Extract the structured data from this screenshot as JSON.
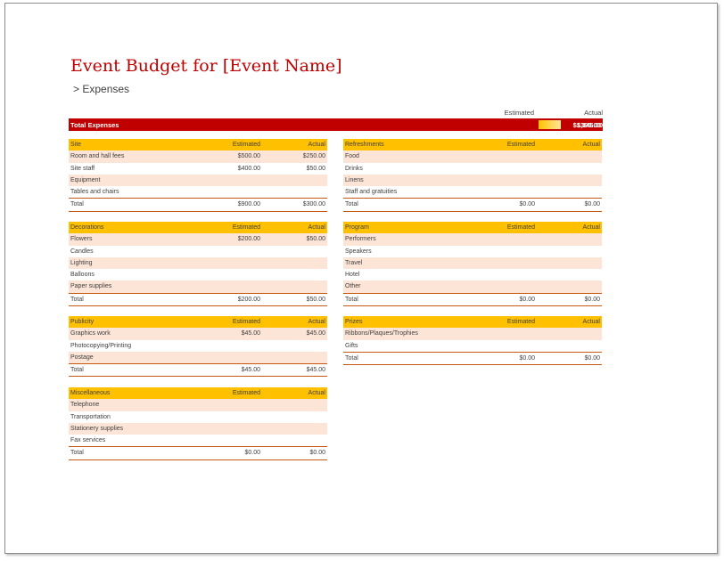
{
  "title": "Event Budget for [Event Name]",
  "subtitle": "> Expenses",
  "summary": {
    "estimated_header": "Estimated",
    "actual_header": "Actual",
    "label": "Total Expenses",
    "estimated": "$1,145.00",
    "actual": "$395.00",
    "progress_fraction": 0.345
  },
  "colors": {
    "accent_red": "#c00000",
    "header_gold": "#ffc000",
    "row_band": "#fce4d6",
    "rule": "#c65911"
  },
  "sections": {
    "site": {
      "name": "Site",
      "est_label": "Estimated",
      "act_label": "Actual",
      "rows": [
        {
          "item": "Room and hall fees",
          "est": "$500.00",
          "act": "$250.00"
        },
        {
          "item": "Site staff",
          "est": "$400.00",
          "act": "$50.00"
        },
        {
          "item": "Equipment",
          "est": "",
          "act": ""
        },
        {
          "item": "Tables and chairs",
          "est": "",
          "act": ""
        }
      ],
      "total": {
        "label": "Total",
        "est": "$900.00",
        "act": "$300.00"
      }
    },
    "refreshments": {
      "name": "Refreshments",
      "est_label": "Estimated",
      "act_label": "Actual",
      "rows": [
        {
          "item": "Food",
          "est": "",
          "act": ""
        },
        {
          "item": "Drinks",
          "est": "",
          "act": ""
        },
        {
          "item": "Linens",
          "est": "",
          "act": ""
        },
        {
          "item": "Staff and gratuities",
          "est": "",
          "act": ""
        }
      ],
      "total": {
        "label": "Total",
        "est": "$0.00",
        "act": "$0.00"
      }
    },
    "decorations": {
      "name": "Decorations",
      "est_label": "Estimated",
      "act_label": "Actual",
      "rows": [
        {
          "item": "Flowers",
          "est": "$200.00",
          "act": "$50.00"
        },
        {
          "item": "Candles",
          "est": "",
          "act": ""
        },
        {
          "item": "Lighting",
          "est": "",
          "act": ""
        },
        {
          "item": "Balloons",
          "est": "",
          "act": ""
        },
        {
          "item": "Paper supplies",
          "est": "",
          "act": ""
        }
      ],
      "total": {
        "label": "Total",
        "est": "$200.00",
        "act": "$50.00"
      }
    },
    "program": {
      "name": "Program",
      "est_label": "Estimated",
      "act_label": "Actual",
      "rows": [
        {
          "item": "Performers",
          "est": "",
          "act": ""
        },
        {
          "item": "Speakers",
          "est": "",
          "act": ""
        },
        {
          "item": "Travel",
          "est": "",
          "act": ""
        },
        {
          "item": "Hotel",
          "est": "",
          "act": ""
        },
        {
          "item": "Other",
          "est": "",
          "act": ""
        }
      ],
      "total": {
        "label": "Total",
        "est": "$0.00",
        "act": "$0.00"
      }
    },
    "publicity": {
      "name": "Publicity",
      "est_label": "Estimated",
      "act_label": "Actual",
      "rows": [
        {
          "item": "Graphics work",
          "est": "$45.00",
          "act": "$45.00"
        },
        {
          "item": "Photocopying/Printing",
          "est": "",
          "act": ""
        },
        {
          "item": "Postage",
          "est": "",
          "act": ""
        }
      ],
      "total": {
        "label": "Total",
        "est": "$45.00",
        "act": "$45.00"
      }
    },
    "prizes": {
      "name": "Prizes",
      "est_label": "Estimated",
      "act_label": "Actual",
      "rows": [
        {
          "item": "Ribbons/Plaques/Trophies",
          "est": "",
          "act": ""
        },
        {
          "item": "Gifts",
          "est": "",
          "act": ""
        }
      ],
      "total": {
        "label": "Total",
        "est": "$0.00",
        "act": "$0.00"
      }
    },
    "miscellaneous": {
      "name": "Miscellaneous",
      "est_label": "Estimated",
      "act_label": "Actual",
      "rows": [
        {
          "item": "Telephone",
          "est": "",
          "act": ""
        },
        {
          "item": "Transportation",
          "est": "",
          "act": ""
        },
        {
          "item": "Stationery supplies",
          "est": "",
          "act": ""
        },
        {
          "item": "Fax services",
          "est": "",
          "act": ""
        }
      ],
      "total": {
        "label": "Total",
        "est": "$0.00",
        "act": "$0.00"
      }
    }
  }
}
